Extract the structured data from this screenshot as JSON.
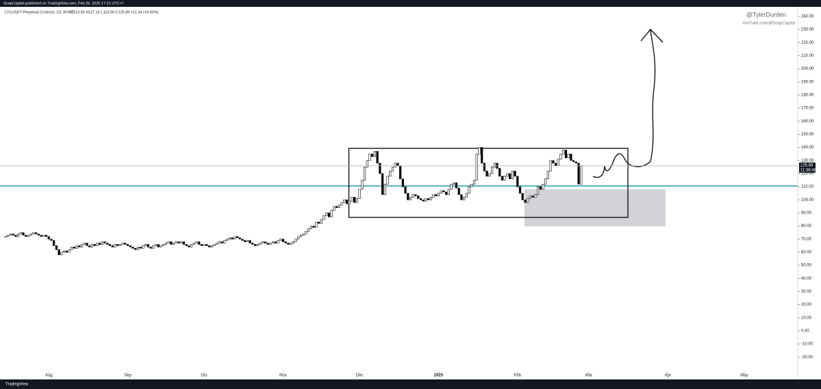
{
  "header": {
    "publisher": "SoapCapital published on TradingView.com, Feb 26, 2025 17:21 UTC+7",
    "symbol": "LTCUSDT Perpetual Contract, 1D, BYBIT",
    "ohlc": "O114.55  H127.16  L113.90  C125.89  +11.34 (+9.90%)"
  },
  "watermark": {
    "handle": "@TylerDurden",
    "channel": "YouTube.com/@SoapCapital"
  },
  "footer": "TradingView",
  "chart_data": {
    "type": "candlestick",
    "closes": [
      72,
      73,
      74,
      73,
      72,
      74,
      75,
      73,
      72,
      73,
      74,
      75,
      74,
      73,
      72,
      73,
      72,
      70,
      69,
      65,
      62,
      58,
      60,
      61,
      60,
      62,
      64,
      63,
      65,
      64,
      66,
      67,
      65,
      64,
      66,
      65,
      67,
      66,
      68,
      67,
      66,
      65,
      64,
      66,
      65,
      66,
      67,
      66,
      65,
      64,
      63,
      62,
      64,
      63,
      65,
      66,
      64,
      63,
      65,
      66,
      64,
      65,
      66,
      67,
      68,
      66,
      67,
      68,
      67,
      68,
      66,
      65,
      64,
      66,
      67,
      68,
      66,
      65,
      66,
      65,
      64,
      65,
      66,
      67,
      68,
      67,
      69,
      70,
      71,
      70,
      72,
      71,
      70,
      69,
      68,
      69,
      67,
      66,
      65,
      66,
      67,
      68,
      67,
      66,
      67,
      68,
      67,
      69,
      70,
      68,
      67,
      66,
      67,
      68,
      70,
      72,
      73,
      74,
      76,
      78,
      80,
      79,
      83,
      82,
      85,
      88,
      90,
      87,
      92,
      95,
      94,
      96,
      98,
      100,
      97,
      99,
      102,
      98,
      101,
      108,
      115,
      125,
      130,
      135,
      133,
      137,
      128,
      120,
      104,
      112,
      118,
      122,
      125,
      128,
      126,
      116,
      110,
      105,
      100,
      102,
      104,
      103,
      101,
      100,
      99,
      101,
      100,
      102,
      104,
      103,
      105,
      107,
      106,
      104,
      108,
      112,
      113,
      109,
      104,
      100,
      102,
      105,
      110,
      112,
      115,
      135,
      140,
      128,
      122,
      118,
      120,
      125,
      128,
      124,
      118,
      115,
      118,
      120,
      116,
      122,
      118,
      110,
      105,
      100,
      98,
      101,
      103,
      102,
      104,
      110,
      108,
      112,
      116,
      122,
      130,
      128,
      126,
      131,
      135,
      138,
      132,
      135,
      130,
      129,
      128,
      112,
      126
    ],
    "up_color": "#ffffff",
    "down_color": "#000000",
    "xlim": [
      -2.15,
      311
    ],
    "xticks": [
      {
        "value": 17,
        "label": "Aug"
      },
      {
        "value": 48,
        "label": "Sep"
      },
      {
        "value": 78,
        "label": "Oct"
      },
      {
        "value": 109,
        "label": "Nov"
      },
      {
        "value": 139,
        "label": "Dec"
      },
      {
        "value": 170,
        "label": "2025",
        "bold": true
      },
      {
        "value": 201,
        "label": "Feb"
      },
      {
        "value": 229,
        "label": "Mar"
      },
      {
        "value": 260,
        "label": "Apr"
      },
      {
        "value": 290,
        "label": "May"
      }
    ],
    "ylim": [
      -30.8,
      247.3
    ],
    "yticks": [
      {
        "value": -20,
        "label": "-20.00"
      },
      {
        "value": -10,
        "label": "-10.00"
      },
      {
        "value": 0,
        "label": "0.00"
      },
      {
        "value": 10,
        "label": "10.00"
      },
      {
        "value": 20,
        "label": "20.00"
      },
      {
        "value": 30,
        "label": "30.00"
      },
      {
        "value": 40,
        "label": "40.00"
      },
      {
        "value": 50,
        "label": "50.00"
      },
      {
        "value": 60,
        "label": "60.00"
      },
      {
        "value": 70,
        "label": "70.00"
      },
      {
        "value": 80,
        "label": "80.00"
      },
      {
        "value": 90,
        "label": "90.00"
      },
      {
        "value": 100,
        "label": "100.00"
      },
      {
        "value": 110,
        "label": "110.00"
      },
      {
        "value": 120,
        "label": "120.00"
      },
      {
        "value": 130,
        "label": "130.00"
      },
      {
        "value": 140,
        "label": "140.00"
      },
      {
        "value": 150,
        "label": "150.00"
      },
      {
        "value": 160,
        "label": "160.00"
      },
      {
        "value": 170,
        "label": "170.00"
      },
      {
        "value": 180,
        "label": "180.00"
      },
      {
        "value": 190,
        "label": "190.00"
      },
      {
        "value": 200,
        "label": "200.00"
      },
      {
        "value": 210,
        "label": "210.00"
      },
      {
        "value": 220,
        "label": "220.00"
      },
      {
        "value": 230,
        "label": "230.00"
      },
      {
        "value": 240,
        "label": "240.00"
      }
    ],
    "last_price": {
      "value": 125.89,
      "label": "125.89"
    },
    "countdown": "11:38:48"
  }
}
